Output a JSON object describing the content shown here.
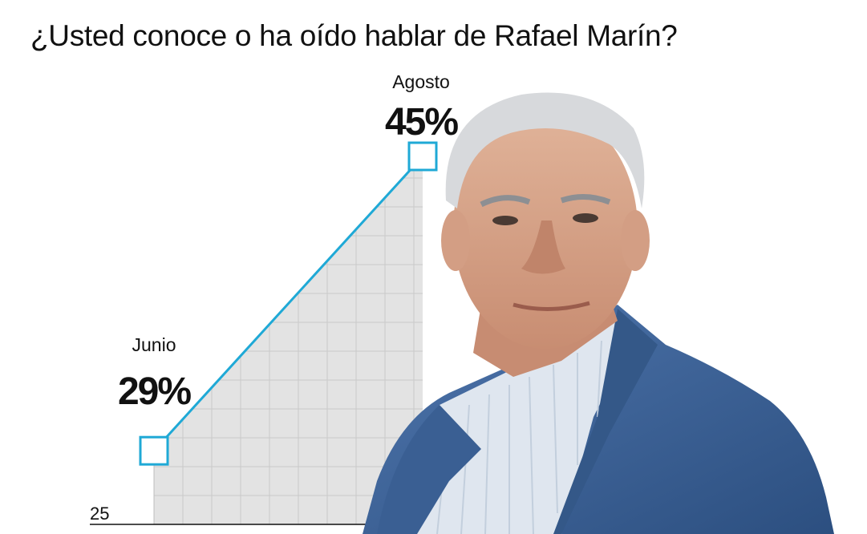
{
  "title": "¿Usted conoce o ha oído hablar de Rafael Marín?",
  "chart_data": {
    "type": "area",
    "title": "¿Usted conoce o ha oído hablar de Rafael Marín?",
    "categories": [
      "Junio",
      "Agosto"
    ],
    "values": [
      29,
      45
    ],
    "value_labels": [
      "29%",
      "45%"
    ],
    "y_tick_labels": [
      "25"
    ],
    "ylim": [
      25,
      46
    ],
    "grid": true,
    "colors": {
      "line": "#1fa9d6",
      "area": "#e3e3e3",
      "grid": "#c9c9c9",
      "marker_fill": "#ffffff"
    }
  },
  "photo": {
    "icon": "person-portrait-icon"
  }
}
